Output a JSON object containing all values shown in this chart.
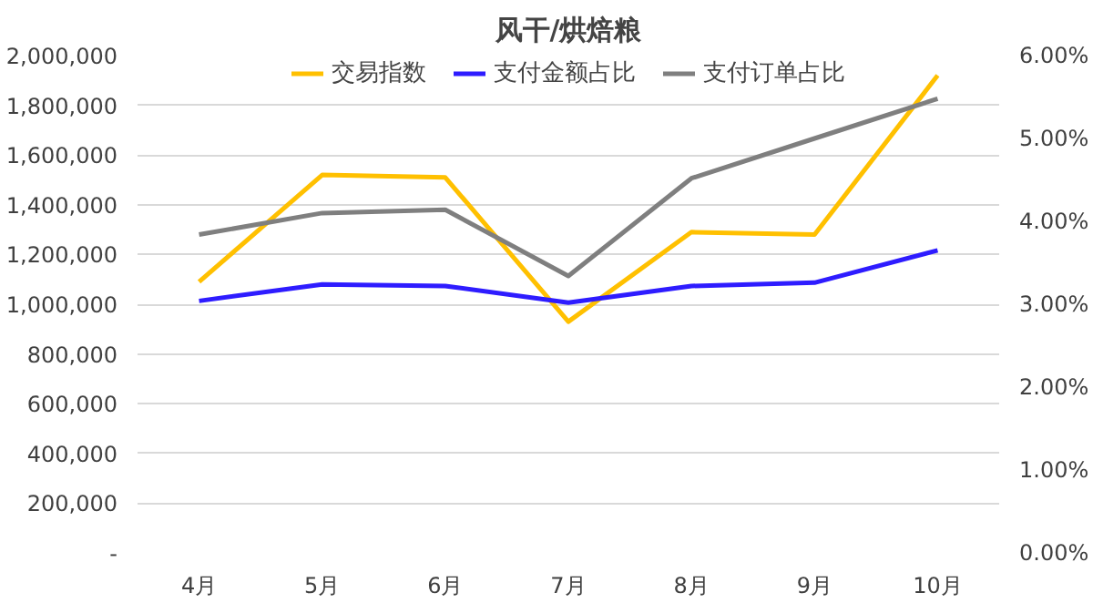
{
  "chart_data": {
    "type": "line",
    "title": "风干/烘焙粮",
    "categories": [
      "4月",
      "5月",
      "6月",
      "7月",
      "8月",
      "9月",
      "10月"
    ],
    "series": [
      {
        "name": "交易指数",
        "color": "#ffc000",
        "values": [
          1090000,
          1520000,
          1510000,
          930000,
          1290000,
          1280000,
          1920000
        ]
      },
      {
        "name": "支付金额占比",
        "color": "#2e1cff",
        "axis": "y2",
        "values": [
          3.04,
          3.24,
          3.22,
          3.02,
          3.22,
          3.26,
          3.65
        ]
      },
      {
        "name": "支付订单占比",
        "color": "#7f7f7f",
        "axis": "y2",
        "values": [
          3.84,
          4.1,
          4.14,
          3.34,
          4.52,
          5.0,
          5.48
        ]
      }
    ],
    "ylim": [
      0,
      2000000
    ],
    "yticks": [
      {
        "value": 0,
        "label": "-"
      },
      {
        "value": 200000,
        "label": "200,000"
      },
      {
        "value": 400000,
        "label": "400,000"
      },
      {
        "value": 600000,
        "label": "600,000"
      },
      {
        "value": 800000,
        "label": "800,000"
      },
      {
        "value": 1000000,
        "label": "1,000,000"
      },
      {
        "value": 1200000,
        "label": "1,200,000"
      },
      {
        "value": 1400000,
        "label": "1,400,000"
      },
      {
        "value": 1600000,
        "label": "1,600,000"
      },
      {
        "value": 1800000,
        "label": "1,800,000"
      },
      {
        "value": 2000000,
        "label": "2,000,000"
      }
    ],
    "y2lim": [
      0,
      6
    ],
    "y2ticks": [
      {
        "value": 0,
        "label": "0.00%"
      },
      {
        "value": 1,
        "label": "1.00%"
      },
      {
        "value": 2,
        "label": "2.00%"
      },
      {
        "value": 3,
        "label": "3.00%"
      },
      {
        "value": 4,
        "label": "4.00%"
      },
      {
        "value": 5,
        "label": "5.00%"
      },
      {
        "value": 6,
        "label": "6.00%"
      }
    ],
    "grid": "y",
    "legend": "top",
    "marker": "none",
    "line_style": "solid"
  }
}
